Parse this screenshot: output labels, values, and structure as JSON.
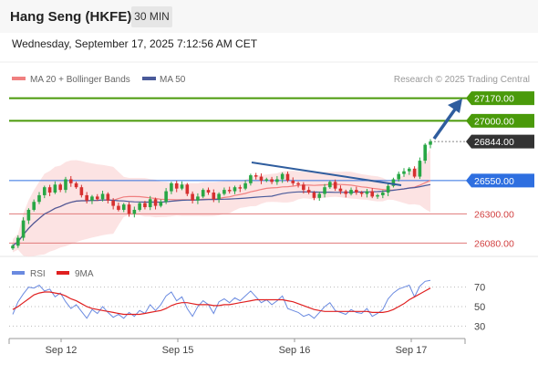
{
  "header": {
    "title": "Hang Seng (HKFE)",
    "interval": "30 MIN"
  },
  "datetime": "Wednesday, September 17, 2025 7:12:56 AM CET",
  "colors": {
    "resistance": "#4a9a0a",
    "pivot": "#2e6fe0",
    "support": "#e07a7a",
    "last": "#333333",
    "up": "#28a745",
    "down": "#d63030",
    "ma20": "#f08080",
    "ma50": "#4a5a9a",
    "rsi": "#6a8ae0",
    "rsi_ma": "#e02020",
    "arrow": "#2f5d9e"
  },
  "chart_data": [
    {
      "type": "line",
      "title": "",
      "legend": [
        {
          "name": "MA 20 + Bollinger Bands"
        },
        {
          "name": "MA 50"
        }
      ],
      "source": "Research © 2025 Trading Central",
      "x_tick_labels": [
        "Sep 12",
        "Sep 15",
        "Sep 16",
        "Sep 17"
      ],
      "ylim": [
        26000,
        27250
      ],
      "levels": [
        {
          "value": 27170,
          "label": "27170.00",
          "kind": "resistance"
        },
        {
          "value": 27000,
          "label": "27000.00",
          "kind": "resistance"
        },
        {
          "value": 26844,
          "label": "26844.00",
          "kind": "last"
        },
        {
          "value": 26550,
          "label": "26550.00",
          "kind": "pivot"
        },
        {
          "value": 26300,
          "label": "26300.00",
          "kind": "support"
        },
        {
          "value": 26080,
          "label": "26080.00",
          "kind": "support"
        }
      ],
      "close": [
        26060,
        26120,
        26250,
        26330,
        26390,
        26440,
        26500,
        26460,
        26520,
        26480,
        26560,
        26530,
        26500,
        26440,
        26400,
        26430,
        26410,
        26450,
        26400,
        26360,
        26330,
        26370,
        26300,
        26330,
        26380,
        26350,
        26410,
        26360,
        26390,
        26470,
        26530,
        26490,
        26520,
        26450,
        26400,
        26430,
        26480,
        26460,
        26410,
        26450,
        26480,
        26470,
        26500,
        26490,
        26530,
        26590,
        26580,
        26550,
        26560,
        26540,
        26560,
        26600,
        26550,
        26530,
        26520,
        26480,
        26460,
        26420,
        26450,
        26500,
        26540,
        26490,
        26470,
        26450,
        26480,
        26460,
        26450,
        26470,
        26430,
        26440,
        26460,
        26510,
        26560,
        26600,
        26620,
        26640,
        26580,
        26700,
        26820,
        26844
      ]
    },
    {
      "type": "line",
      "title": "",
      "legend": [
        {
          "name": "RSI"
        },
        {
          "name": "9MA"
        }
      ],
      "ylim": [
        20,
        80
      ],
      "y_ticks": [
        70,
        50,
        30
      ],
      "rsi": [
        42,
        55,
        63,
        70,
        69,
        72,
        66,
        68,
        60,
        64,
        55,
        48,
        52,
        45,
        38,
        47,
        43,
        50,
        44,
        39,
        42,
        38,
        44,
        40,
        46,
        43,
        52,
        46,
        52,
        61,
        65,
        56,
        60,
        48,
        40,
        50,
        56,
        52,
        43,
        55,
        58,
        54,
        59,
        56,
        61,
        66,
        60,
        54,
        57,
        52,
        56,
        61,
        48,
        46,
        44,
        40,
        42,
        38,
        44,
        50,
        54,
        46,
        44,
        42,
        47,
        44,
        43,
        48,
        40,
        43,
        47,
        58,
        64,
        68,
        70,
        72,
        60,
        71,
        76,
        77
      ],
      "rsi_ma": [
        47,
        50,
        54,
        58,
        62,
        64,
        65,
        65,
        64,
        63,
        61,
        58,
        56,
        53,
        50,
        48,
        47,
        46,
        45,
        44,
        43,
        42,
        42,
        42,
        42,
        43,
        44,
        45,
        46,
        48,
        51,
        53,
        54,
        54,
        53,
        52,
        52,
        52,
        51,
        51,
        52,
        52,
        53,
        54,
        55,
        56,
        57,
        57,
        57,
        57,
        57,
        57,
        56,
        55,
        53,
        51,
        49,
        47,
        46,
        45,
        45,
        45,
        45,
        45,
        45,
        45,
        45,
        45,
        44,
        44,
        44,
        45,
        47,
        50,
        53,
        57,
        60,
        63,
        66,
        69
      ]
    }
  ]
}
